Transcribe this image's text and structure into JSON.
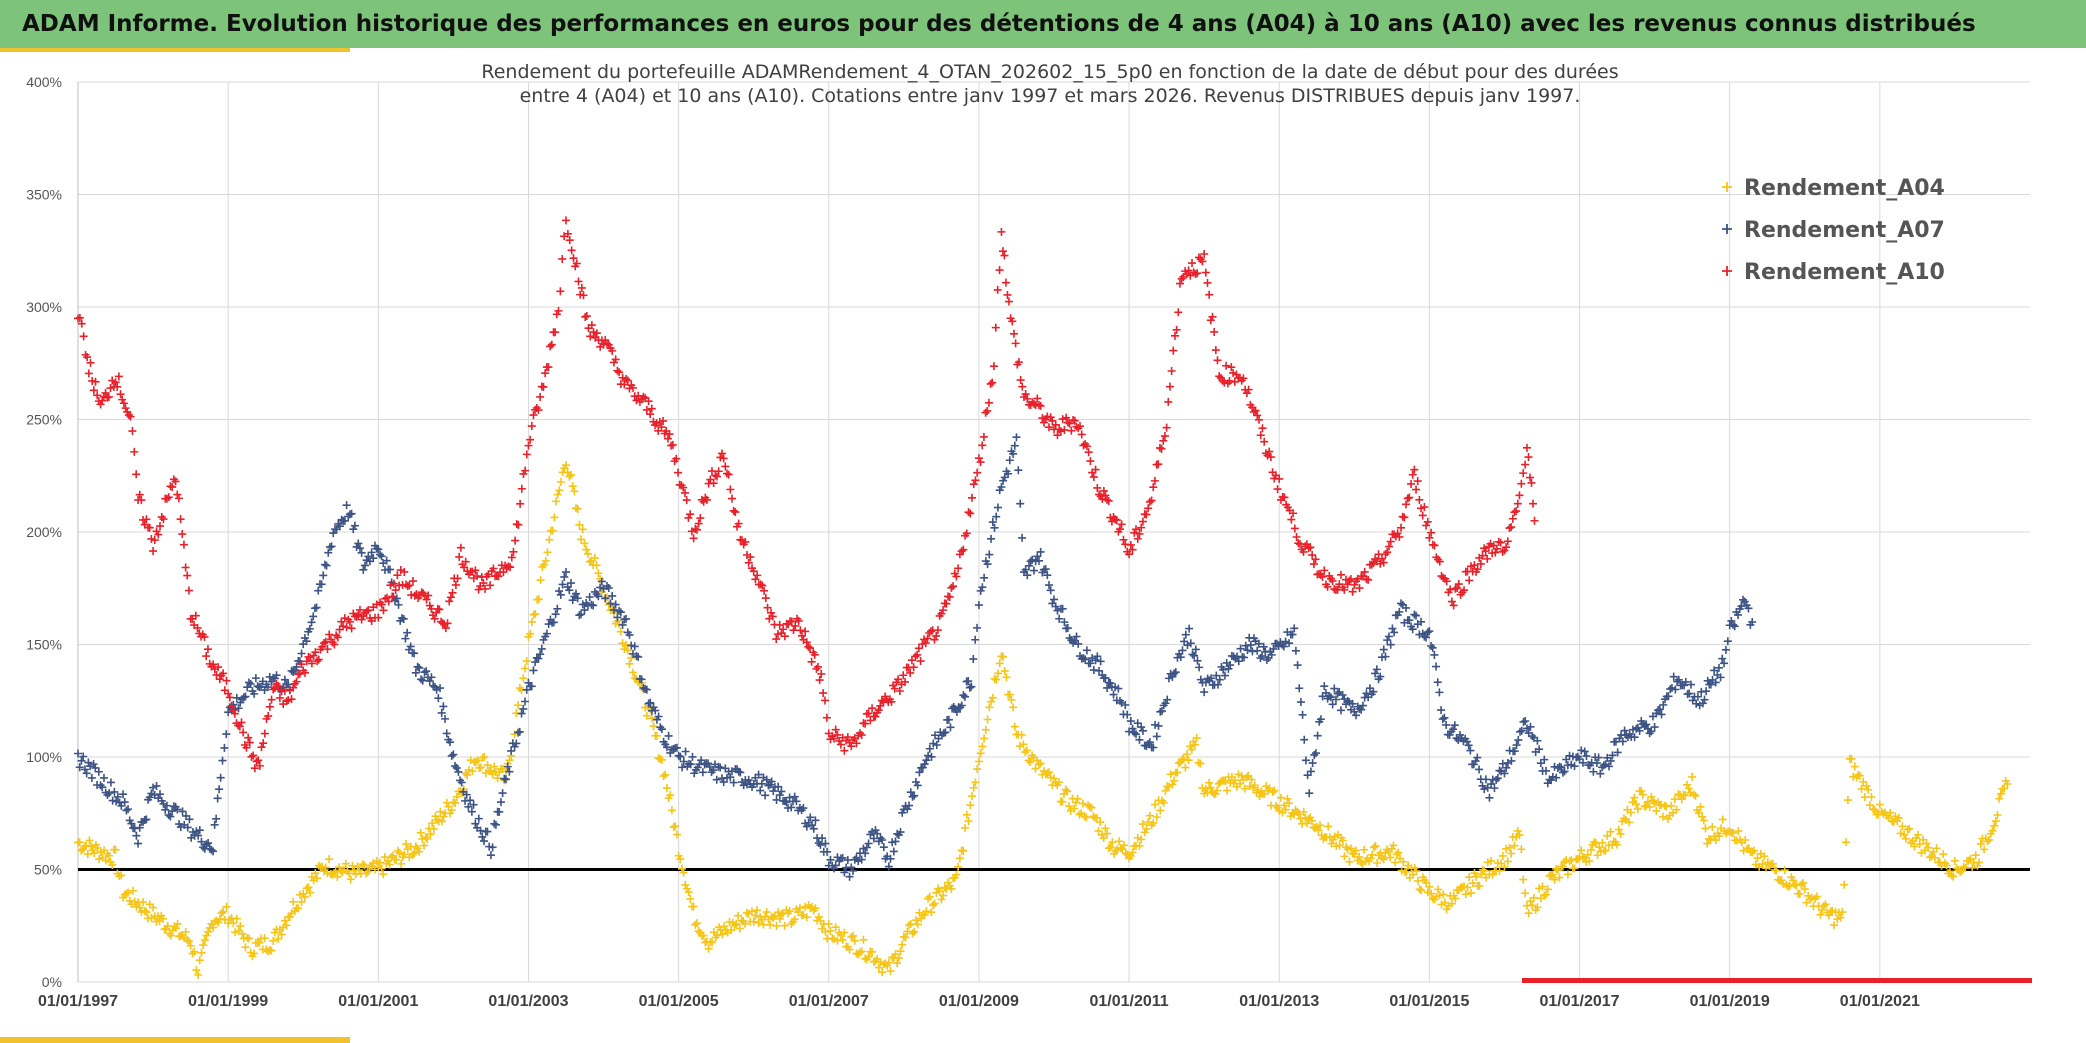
{
  "header": {
    "title": "ADAM Informe. Evolution historique des performances en euros pour des détentions de 4 ans (A04) à 10 ans (A10) avec les revenus connus distribués"
  },
  "colors": {
    "header_bg": "#7dc47a",
    "accent": "#f2c12e",
    "A04": "#f5c518",
    "A07": "#3c5383",
    "A10": "#e8202a"
  },
  "chart_data": {
    "type": "scatter",
    "title_line1": "Rendement du portefeuille ADAMRendement_4_OTAN_202602_15_5p0  en fonction de la date de début pour des durées",
    "title_line2": "entre 4 (A04) et 10 ans (A10). Cotations entre janv 1997 et mars 2026. Revenus DISTRIBUES depuis janv 1997.",
    "y_ticks": [
      "0%",
      "50%",
      "100%",
      "150%",
      "200%",
      "250%",
      "300%",
      "350%",
      "400%"
    ],
    "ylim": [
      0,
      400
    ],
    "x_ticks": [
      "01/01/1997",
      "01/01/1999",
      "01/01/2001",
      "01/01/2003",
      "01/01/2005",
      "01/01/2007",
      "01/01/2009",
      "01/01/2011",
      "01/01/2013",
      "01/01/2015",
      "01/01/2017",
      "01/01/2019",
      "01/01/2021"
    ],
    "xlim": [
      1997.0,
      2023.0
    ],
    "reference_line": 50,
    "legend": [
      "Rendement_A04",
      "Rendement_A07",
      "Rendement_A10"
    ],
    "series": [
      {
        "name": "Rendement_A04",
        "points": [
          [
            1997.0,
            62
          ],
          [
            1997.5,
            55
          ],
          [
            1997.6,
            40
          ],
          [
            1998.0,
            30
          ],
          [
            1998.5,
            18
          ],
          [
            1998.6,
            5
          ],
          [
            1998.8,
            28
          ],
          [
            1999.0,
            30
          ],
          [
            1999.3,
            15
          ],
          [
            1999.6,
            18
          ],
          [
            1999.8,
            30
          ],
          [
            2000.0,
            40
          ],
          [
            2000.3,
            52
          ],
          [
            2000.7,
            48
          ],
          [
            2001.0,
            50
          ],
          [
            2001.5,
            60
          ],
          [
            2002.0,
            80
          ],
          [
            2002.3,
            100
          ],
          [
            2002.7,
            90
          ],
          [
            2003.0,
            150
          ],
          [
            2003.3,
            200
          ],
          [
            2003.5,
            233
          ],
          [
            2003.7,
            200
          ],
          [
            2004.0,
            175
          ],
          [
            2004.3,
            150
          ],
          [
            2004.6,
            120
          ],
          [
            2004.8,
            95
          ],
          [
            2005.0,
            60
          ],
          [
            2005.2,
            30
          ],
          [
            2005.4,
            18
          ],
          [
            2005.7,
            25
          ],
          [
            2006.0,
            30
          ],
          [
            2006.5,
            28
          ],
          [
            2006.8,
            33
          ],
          [
            2007.0,
            22
          ],
          [
            2007.3,
            18
          ],
          [
            2007.6,
            12
          ],
          [
            2007.8,
            5
          ],
          [
            2008.0,
            18
          ],
          [
            2008.3,
            33
          ],
          [
            2008.7,
            45
          ],
          [
            2009.0,
            100
          ],
          [
            2009.3,
            148
          ],
          [
            2009.5,
            110
          ],
          [
            2009.8,
            95
          ],
          [
            2010.2,
            80
          ],
          [
            2010.5,
            75
          ],
          [
            2010.8,
            60
          ],
          [
            2011.0,
            58
          ],
          [
            2011.3,
            72
          ],
          [
            2011.6,
            92
          ],
          [
            2011.9,
            105
          ],
          [
            2012.0,
            85
          ],
          [
            2012.5,
            90
          ],
          [
            2013.0,
            80
          ],
          [
            2013.5,
            70
          ],
          [
            2014.0,
            55
          ],
          [
            2014.5,
            58
          ],
          [
            2015.0,
            40
          ],
          [
            2015.3,
            35
          ],
          [
            2015.6,
            45
          ],
          [
            2016.0,
            55
          ],
          [
            2016.2,
            65
          ],
          [
            2016.3,
            30
          ],
          [
            2016.6,
            45
          ],
          [
            2017.0,
            55
          ],
          [
            2017.5,
            65
          ],
          [
            2017.8,
            82
          ],
          [
            2018.2,
            75
          ],
          [
            2018.5,
            88
          ],
          [
            2018.7,
            65
          ],
          [
            2019.0,
            70
          ],
          [
            2019.3,
            55
          ],
          [
            2019.6,
            50
          ],
          [
            2020.0,
            40
          ],
          [
            2020.3,
            30
          ],
          [
            2020.5,
            28
          ],
          [
            2020.6,
            97
          ],
          [
            2021.0,
            75
          ],
          [
            2021.3,
            68
          ],
          [
            2021.6,
            60
          ],
          [
            2022.0,
            50
          ],
          [
            2022.3,
            55
          ],
          [
            2022.5,
            70
          ],
          [
            2022.7,
            88
          ]
        ]
      },
      {
        "name": "Rendement_A07",
        "points": [
          [
            1997.0,
            100
          ],
          [
            1997.3,
            90
          ],
          [
            1997.6,
            80
          ],
          [
            1997.8,
            65
          ],
          [
            1998.0,
            85
          ],
          [
            1998.3,
            75
          ],
          [
            1998.6,
            65
          ],
          [
            1998.8,
            60
          ],
          [
            1998.9,
            93
          ],
          [
            1999.0,
            120
          ],
          [
            1999.3,
            130
          ],
          [
            1999.6,
            135
          ],
          [
            1999.8,
            130
          ],
          [
            2000.0,
            150
          ],
          [
            2000.2,
            170
          ],
          [
            2000.4,
            200
          ],
          [
            2000.6,
            210
          ],
          [
            2000.8,
            185
          ],
          [
            2001.0,
            195
          ],
          [
            2001.2,
            175
          ],
          [
            2001.5,
            140
          ],
          [
            2001.8,
            130
          ],
          [
            2002.0,
            100
          ],
          [
            2002.2,
            80
          ],
          [
            2002.5,
            60
          ],
          [
            2002.7,
            90
          ],
          [
            2003.0,
            130
          ],
          [
            2003.2,
            150
          ],
          [
            2003.5,
            180
          ],
          [
            2003.7,
            165
          ],
          [
            2004.0,
            175
          ],
          [
            2004.3,
            160
          ],
          [
            2004.6,
            125
          ],
          [
            2004.8,
            110
          ],
          [
            2005.0,
            100
          ],
          [
            2005.3,
            95
          ],
          [
            2005.6,
            92
          ],
          [
            2006.0,
            90
          ],
          [
            2006.5,
            80
          ],
          [
            2006.8,
            70
          ],
          [
            2007.0,
            55
          ],
          [
            2007.3,
            50
          ],
          [
            2007.6,
            65
          ],
          [
            2007.8,
            55
          ],
          [
            2008.0,
            75
          ],
          [
            2008.3,
            100
          ],
          [
            2008.6,
            115
          ],
          [
            2008.9,
            135
          ],
          [
            2009.0,
            170
          ],
          [
            2009.3,
            220
          ],
          [
            2009.5,
            240
          ],
          [
            2009.6,
            180
          ],
          [
            2009.8,
            190
          ],
          [
            2010.0,
            170
          ],
          [
            2010.3,
            150
          ],
          [
            2010.6,
            140
          ],
          [
            2010.9,
            125
          ],
          [
            2011.0,
            115
          ],
          [
            2011.3,
            105
          ],
          [
            2011.6,
            140
          ],
          [
            2011.8,
            155
          ],
          [
            2012.0,
            130
          ],
          [
            2012.3,
            140
          ],
          [
            2012.6,
            150
          ],
          [
            2012.9,
            145
          ],
          [
            2013.2,
            155
          ],
          [
            2013.4,
            85
          ],
          [
            2013.6,
            130
          ],
          [
            2014.0,
            120
          ],
          [
            2014.3,
            135
          ],
          [
            2014.6,
            165
          ],
          [
            2015.0,
            155
          ],
          [
            2015.2,
            115
          ],
          [
            2015.5,
            105
          ],
          [
            2015.8,
            85
          ],
          [
            2016.0,
            95
          ],
          [
            2016.3,
            115
          ],
          [
            2016.6,
            90
          ],
          [
            2017.0,
            100
          ],
          [
            2017.3,
            95
          ],
          [
            2017.6,
            110
          ],
          [
            2018.0,
            115
          ],
          [
            2018.3,
            135
          ],
          [
            2018.6,
            125
          ],
          [
            2018.9,
            140
          ],
          [
            2019.0,
            155
          ],
          [
            2019.2,
            170
          ],
          [
            2019.3,
            160
          ]
        ]
      },
      {
        "name": "Rendement_A10",
        "points": [
          [
            1997.0,
            298
          ],
          [
            1997.1,
            280
          ],
          [
            1997.3,
            255
          ],
          [
            1997.5,
            270
          ],
          [
            1997.7,
            250
          ],
          [
            1997.8,
            215
          ],
          [
            1998.0,
            195
          ],
          [
            1998.3,
            225
          ],
          [
            1998.5,
            165
          ],
          [
            1998.8,
            140
          ],
          [
            1999.0,
            130
          ],
          [
            1999.2,
            110
          ],
          [
            1999.4,
            95
          ],
          [
            1999.6,
            130
          ],
          [
            1999.8,
            125
          ],
          [
            2000.0,
            140
          ],
          [
            2000.3,
            150
          ],
          [
            2000.6,
            160
          ],
          [
            2001.0,
            165
          ],
          [
            2001.3,
            180
          ],
          [
            2001.6,
            170
          ],
          [
            2001.9,
            160
          ],
          [
            2002.1,
            190
          ],
          [
            2002.4,
            175
          ],
          [
            2002.8,
            190
          ],
          [
            2003.0,
            240
          ],
          [
            2003.2,
            265
          ],
          [
            2003.4,
            300
          ],
          [
            2003.5,
            340
          ],
          [
            2003.6,
            325
          ],
          [
            2003.8,
            290
          ],
          [
            2004.0,
            285
          ],
          [
            2004.3,
            265
          ],
          [
            2004.6,
            255
          ],
          [
            2004.9,
            240
          ],
          [
            2005.2,
            200
          ],
          [
            2005.4,
            220
          ],
          [
            2005.6,
            235
          ],
          [
            2005.8,
            200
          ],
          [
            2006.0,
            185
          ],
          [
            2006.3,
            155
          ],
          [
            2006.6,
            160
          ],
          [
            2006.9,
            135
          ],
          [
            2007.0,
            110
          ],
          [
            2007.3,
            105
          ],
          [
            2007.6,
            120
          ],
          [
            2007.9,
            130
          ],
          [
            2008.2,
            145
          ],
          [
            2008.5,
            160
          ],
          [
            2008.7,
            180
          ],
          [
            2009.0,
            230
          ],
          [
            2009.2,
            275
          ],
          [
            2009.3,
            335
          ],
          [
            2009.4,
            300
          ],
          [
            2009.6,
            260
          ],
          [
            2009.8,
            255
          ],
          [
            2010.0,
            245
          ],
          [
            2010.3,
            250
          ],
          [
            2010.6,
            220
          ],
          [
            2010.9,
            200
          ],
          [
            2011.0,
            190
          ],
          [
            2011.3,
            215
          ],
          [
            2011.5,
            250
          ],
          [
            2011.7,
            315
          ],
          [
            2012.0,
            320
          ],
          [
            2012.2,
            270
          ],
          [
            2012.5,
            270
          ],
          [
            2012.8,
            240
          ],
          [
            2013.0,
            220
          ],
          [
            2013.3,
            195
          ],
          [
            2013.6,
            180
          ],
          [
            2014.0,
            175
          ],
          [
            2014.3,
            185
          ],
          [
            2014.6,
            200
          ],
          [
            2014.8,
            225
          ],
          [
            2015.0,
            200
          ],
          [
            2015.3,
            170
          ],
          [
            2015.6,
            185
          ],
          [
            2015.9,
            195
          ],
          [
            2016.0,
            190
          ],
          [
            2016.2,
            215
          ],
          [
            2016.3,
            240
          ],
          [
            2016.4,
            205
          ]
        ]
      }
    ]
  }
}
